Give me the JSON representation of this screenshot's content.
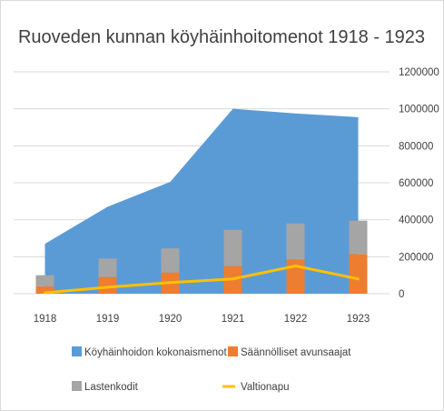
{
  "chart_data": {
    "type": "bar",
    "title": "Ruoveden kunnan köyhäinhoitomenot 1918 - 1923",
    "categories": [
      "1918",
      "1919",
      "1920",
      "1921",
      "1922",
      "1923"
    ],
    "ylim": [
      0,
      1200000
    ],
    "yticks": [
      0,
      200000,
      400000,
      600000,
      800000,
      1000000,
      1200000
    ],
    "y_axis_side": "right",
    "grid": true,
    "legend_position": "bottom",
    "series": [
      {
        "name": "Köyhäinhoidon kokonaismenot",
        "kind": "area",
        "color": "#5b9bd5",
        "values": [
          270000,
          470000,
          605000,
          1000000,
          975000,
          955000
        ]
      },
      {
        "name": "Säännölliset avunsaajat",
        "kind": "stacked-bar",
        "color": "#ed7d31",
        "values": [
          40000,
          90000,
          115000,
          150000,
          185000,
          215000
        ]
      },
      {
        "name": "Lastenkodit",
        "kind": "stacked-bar",
        "color": "#a5a5a5",
        "values": [
          60000,
          100000,
          130000,
          195000,
          195000,
          180000
        ]
      },
      {
        "name": "Valtionapu",
        "kind": "line",
        "color": "#ffc000",
        "values": [
          5000,
          35000,
          60000,
          80000,
          150000,
          80000
        ]
      }
    ]
  }
}
